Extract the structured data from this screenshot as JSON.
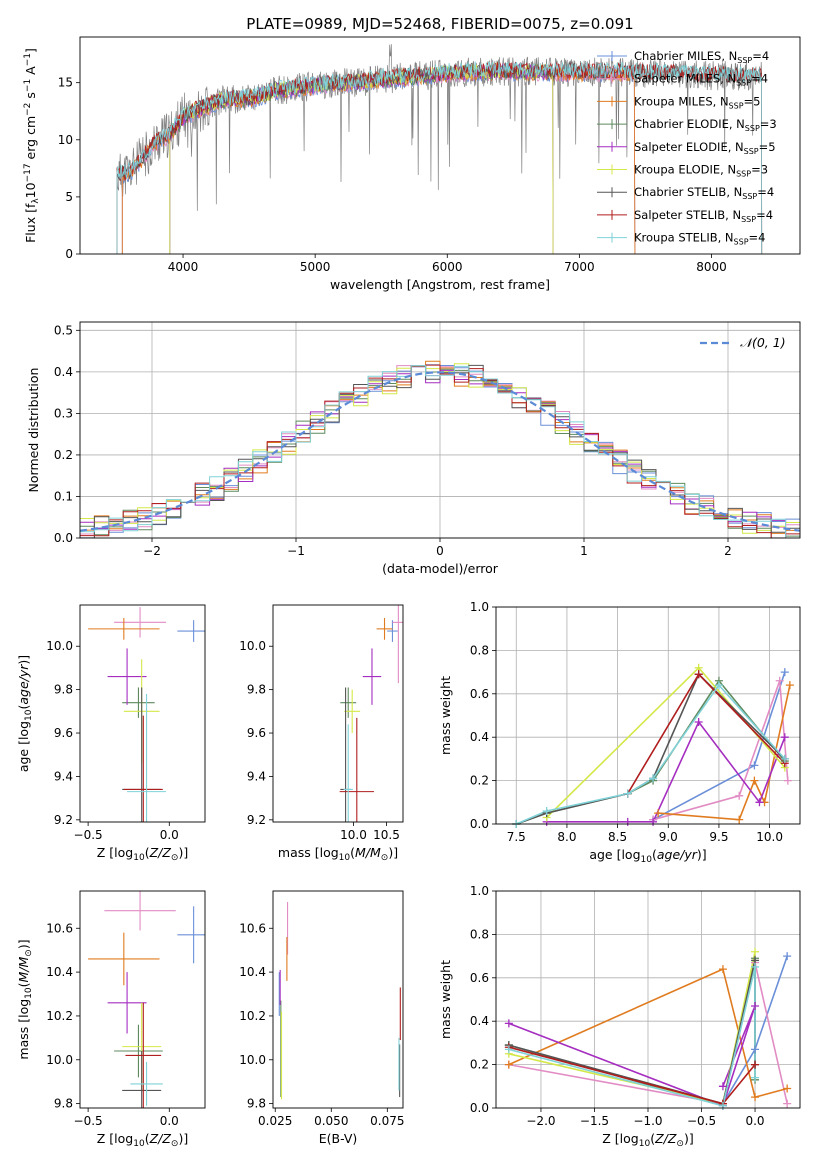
{
  "title": "PLATE=0989, MJD=52468, FIBERID=0075, z=0.091",
  "colors": {
    "Chabrier MILES": "#6a8fd8",
    "Salpeter MILES": "#e28cc4",
    "Kroupa MILES": "#e07b1f",
    "Chabrier ELODIE": "#5e8a5e",
    "Salpeter ELODIE": "#a52ec0",
    "Kroupa ELODIE": "#d4e84a",
    "Chabrier STELIB": "#555555",
    "Salpeter STELIB": "#b01e1e",
    "Kroupa STELIB": "#7fd2d8",
    "gaussian": "#5b8ad6"
  },
  "chart_data": [
    {
      "id": "spectrum",
      "type": "line",
      "xlabel": "wavelength [Angstrom, rest frame]",
      "ylabel": "Flux [f_λ 10^-17 erg cm^-2 s^-1 A^-1]",
      "xlim": [
        3220,
        8670
      ],
      "ylim": [
        0,
        19
      ],
      "xticks": [
        "4000",
        "5000",
        "6000",
        "7000",
        "8000"
      ],
      "yticks": [
        "0",
        "5",
        "10",
        "15"
      ],
      "legend_position": "top-right",
      "legend": [
        {
          "name": "Chabrier MILES",
          "nssp": "4"
        },
        {
          "name": "Salpeter MILES",
          "nssp": "4"
        },
        {
          "name": "Kroupa MILES",
          "nssp": "5"
        },
        {
          "name": "Chabrier ELODIE",
          "nssp": "3"
        },
        {
          "name": "Salpeter ELODIE",
          "nssp": "5"
        },
        {
          "name": "Kroupa ELODIE",
          "nssp": "3"
        },
        {
          "name": "Chabrier STELIB",
          "nssp": "4"
        },
        {
          "name": "Salpeter STELIB",
          "nssp": "4"
        },
        {
          "name": "Kroupa STELIB",
          "nssp": "4"
        }
      ],
      "continuum": {
        "x": [
          3500,
          3600,
          3700,
          3800,
          3900,
          4000,
          4100,
          4300,
          4500,
          4700,
          4900,
          5100,
          5300,
          5500,
          5800,
          6100,
          6400,
          6800,
          7200,
          7600,
          8000,
          8300
        ],
        "y": [
          6.8,
          7.2,
          8.5,
          9.8,
          10.5,
          12.0,
          12.6,
          13.5,
          13.6,
          14.3,
          14.6,
          14.9,
          15.0,
          15.3,
          15.6,
          15.9,
          16.0,
          15.9,
          15.9,
          15.8,
          15.6,
          15.6
        ]
      },
      "model_ranges": {
        "MILES": [
          3540,
          7420
        ],
        "ELODIE": [
          3900,
          6800
        ],
        "STELIB": [
          3500,
          8380
        ]
      }
    },
    {
      "id": "residuals",
      "type": "histogram",
      "xlabel": "(data-model)/error",
      "ylabel": "Normed distribution",
      "xlim": [
        -2.5,
        2.5
      ],
      "ylim": [
        0,
        0.52
      ],
      "xticks": [
        "−2",
        "−1",
        "0",
        "1",
        "2"
      ],
      "yticks": [
        "0.0",
        "0.1",
        "0.2",
        "0.3",
        "0.4",
        "0.5"
      ],
      "bin_width": 0.1,
      "legend_label": "𝒩(0, 1)",
      "legend_position": "top-right",
      "grid": true
    },
    {
      "id": "age-vs-Z",
      "type": "errorbar",
      "xlabel": "Z [log10(Z/Z⊙)]",
      "ylabel": "age  [log10(age/yr)]",
      "xlim": [
        -0.55,
        0.22
      ],
      "ylim": [
        9.19,
        10.19
      ],
      "xticks": [
        "−0.5",
        "0.0"
      ],
      "yticks": [
        "9.2",
        "9.4",
        "9.6",
        "9.8",
        "10.0"
      ],
      "series": [
        {
          "name": "Chabrier MILES",
          "x": 0.15,
          "xerr": 0.1,
          "y": 10.07,
          "yerr": 0.05
        },
        {
          "name": "Salpeter MILES",
          "x": -0.18,
          "xerr": 0.16,
          "y": 10.11,
          "yerr": 0.07
        },
        {
          "name": "Kroupa MILES",
          "x": -0.28,
          "xerr": 0.22,
          "y": 10.08,
          "yerr": 0.05
        },
        {
          "name": "Chabrier ELODIE",
          "x": -0.19,
          "xerr": 0.1,
          "y": 9.74,
          "yerr": 0.07
        },
        {
          "name": "Salpeter ELODIE",
          "x": -0.26,
          "xerr": 0.12,
          "y": 9.86,
          "yerr": 0.13
        },
        {
          "name": "Kroupa ELODIE",
          "x": -0.17,
          "xerr": 0.11,
          "y": 9.7,
          "yerr": 0.24
        },
        {
          "name": "Chabrier STELIB",
          "x": -0.17,
          "xerr": 0.12,
          "y": 9.34,
          "yerr": 0.47
        },
        {
          "name": "Salpeter STELIB",
          "x": -0.16,
          "xerr": 0.12,
          "y": 9.34,
          "yerr": 0.34
        },
        {
          "name": "Kroupa STELIB",
          "x": -0.14,
          "xerr": 0.12,
          "y": 9.33,
          "yerr": 0.45
        }
      ]
    },
    {
      "id": "age-vs-mass",
      "type": "errorbar",
      "xlabel": "mass [log10(M/M⊙)]",
      "ylabel": "",
      "xlim": [
        8.78,
        10.75
      ],
      "ylim": [
        9.19,
        10.19
      ],
      "xticks": [
        "10.0",
        "10.5"
      ],
      "yticks": [
        "9.2",
        "9.4",
        "9.6",
        "9.8",
        "10.0"
      ],
      "series": [
        {
          "name": "Chabrier MILES",
          "x": 10.59,
          "xerr": 0.08,
          "y": 10.07,
          "yerr": 0.05
        },
        {
          "name": "Salpeter MILES",
          "x": 10.68,
          "xerr": 0.09,
          "y": 10.11,
          "yerr": 0.28
        },
        {
          "name": "Kroupa MILES",
          "x": 10.47,
          "xerr": 0.12,
          "y": 10.08,
          "yerr": 0.05
        },
        {
          "name": "Chabrier ELODIE",
          "x": 9.92,
          "xerr": 0.12,
          "y": 9.74,
          "yerr": 0.07
        },
        {
          "name": "Salpeter ELODIE",
          "x": 10.28,
          "xerr": 0.14,
          "y": 9.86,
          "yerr": 0.13
        },
        {
          "name": "Kroupa ELODIE",
          "x": 9.98,
          "xerr": 0.12,
          "y": 9.7,
          "yerr": 0.1
        },
        {
          "name": "Chabrier STELIB",
          "x": 9.88,
          "xerr": 0.08,
          "y": 9.34,
          "yerr": 0.47
        },
        {
          "name": "Salpeter STELIB",
          "x": 10.05,
          "xerr": 0.26,
          "y": 9.33,
          "yerr": 0.34
        },
        {
          "name": "Kroupa STELIB",
          "x": 9.92,
          "xerr": 0.07,
          "y": 9.34,
          "yerr": 0.3
        }
      ]
    },
    {
      "id": "weight-vs-age",
      "type": "line",
      "xlabel": "age  [log10(age/yr)]",
      "ylabel": "mass weight",
      "xlim": [
        7.3,
        10.3
      ],
      "ylim": [
        0,
        1
      ],
      "xticks": [
        "7.5",
        "8.0",
        "8.5",
        "9.0",
        "9.5",
        "10.0"
      ],
      "yticks": [
        "0.0",
        "0.2",
        "0.4",
        "0.6",
        "0.8",
        "1.0"
      ],
      "grid": true,
      "series": [
        {
          "name": "Chabrier MILES",
          "x": [
            8.85,
            9.85,
            10.15
          ],
          "y": [
            0.02,
            0.27,
            0.7
          ]
        },
        {
          "name": "Salpeter MILES",
          "x": [
            8.85,
            9.7,
            10.1,
            10.18
          ],
          "y": [
            0.02,
            0.13,
            0.66,
            0.2
          ]
        },
        {
          "name": "Kroupa MILES",
          "x": [
            8.9,
            9.7,
            9.85,
            9.95,
            10.2
          ],
          "y": [
            0.05,
            0.02,
            0.2,
            0.1,
            0.64
          ]
        },
        {
          "name": "Chabrier ELODIE",
          "x": [
            7.5,
            7.8,
            8.6,
            8.85,
            9.5,
            10.15
          ],
          "y": [
            0.0,
            0.05,
            0.14,
            0.2,
            0.66,
            0.29
          ]
        },
        {
          "name": "Salpeter ELODIE",
          "x": [
            7.8,
            8.6,
            8.85,
            9.3,
            9.9,
            10.15
          ],
          "y": [
            0.01,
            0.01,
            0.01,
            0.47,
            0.1,
            0.4
          ]
        },
        {
          "name": "Kroupa ELODIE",
          "x": [
            7.8,
            9.3,
            10.15
          ],
          "y": [
            0.03,
            0.72,
            0.26
          ]
        },
        {
          "name": "Chabrier STELIB",
          "x": [
            7.5,
            7.8,
            8.6,
            8.85,
            9.3,
            10.15
          ],
          "y": [
            0.0,
            0.05,
            0.14,
            0.21,
            0.69,
            0.3
          ]
        },
        {
          "name": "Salpeter STELIB",
          "x": [
            8.6,
            9.3,
            10.15
          ],
          "y": [
            0.14,
            0.69,
            0.28
          ]
        },
        {
          "name": "Kroupa STELIB",
          "x": [
            7.5,
            7.8,
            8.6,
            8.85,
            9.5,
            10.15
          ],
          "y": [
            0.0,
            0.06,
            0.14,
            0.21,
            0.64,
            0.3
          ]
        }
      ]
    },
    {
      "id": "mass-vs-Z",
      "type": "errorbar",
      "xlabel": "Z [log10(Z/Z⊙)]",
      "ylabel": "mass [log10(M/M⊙)]",
      "xlim": [
        -0.55,
        0.22
      ],
      "ylim": [
        9.78,
        10.77
      ],
      "xticks": [
        "−0.5",
        "0.0"
      ],
      "yticks": [
        "9.8",
        "10.0",
        "10.2",
        "10.4",
        "10.6"
      ],
      "series": [
        {
          "name": "Chabrier MILES",
          "x": 0.15,
          "xerr": 0.1,
          "y": 10.57,
          "yerr": 0.13
        },
        {
          "name": "Salpeter MILES",
          "x": -0.18,
          "xerr": 0.22,
          "y": 10.68,
          "yerr": 0.09
        },
        {
          "name": "Kroupa MILES",
          "x": -0.28,
          "xerr": 0.22,
          "y": 10.46,
          "yerr": 0.12
        },
        {
          "name": "Chabrier ELODIE",
          "x": -0.19,
          "xerr": 0.15,
          "y": 10.04,
          "yerr": 0.12
        },
        {
          "name": "Salpeter ELODIE",
          "x": -0.26,
          "xerr": 0.12,
          "y": 10.26,
          "yerr": 0.14
        },
        {
          "name": "Kroupa ELODIE",
          "x": -0.17,
          "xerr": 0.12,
          "y": 10.06,
          "yerr": 0.2
        },
        {
          "name": "Chabrier STELIB",
          "x": -0.17,
          "xerr": 0.12,
          "y": 9.86,
          "yerr": 0.18
        },
        {
          "name": "Salpeter STELIB",
          "x": -0.16,
          "xerr": 0.11,
          "y": 10.02,
          "yerr": 0.24
        },
        {
          "name": "Kroupa STELIB",
          "x": -0.14,
          "xerr": 0.1,
          "y": 9.89,
          "yerr": 0.1
        }
      ]
    },
    {
      "id": "mass-vs-EBV",
      "type": "errorbar",
      "xlabel": "E(B-V)",
      "ylabel": "",
      "xlim": [
        0.024,
        0.082
      ],
      "ylim": [
        9.78,
        10.77
      ],
      "xticks": [
        "0.025",
        "0.050",
        "0.075"
      ],
      "yticks": [
        "9.8",
        "10.0",
        "10.2",
        "10.4",
        "10.6"
      ],
      "series": [
        {
          "name": "Chabrier MILES",
          "x": 0.0268,
          "xerr": 0,
          "y": 10.3,
          "yerr": 0.1
        },
        {
          "name": "Salpeter MILES",
          "x": 0.0305,
          "xerr": 0,
          "y": 10.6,
          "yerr": 0.12
        },
        {
          "name": "Kroupa MILES",
          "x": 0.0302,
          "xerr": 0,
          "y": 10.46,
          "yerr": 0.1
        },
        {
          "name": "Chabrier ELODIE",
          "x": 0.0275,
          "xerr": 0,
          "y": 10.05,
          "yerr": 0.22
        },
        {
          "name": "Salpeter ELODIE",
          "x": 0.0272,
          "xerr": 0,
          "y": 10.33,
          "yerr": 0.08
        },
        {
          "name": "Kroupa ELODIE",
          "x": 0.0278,
          "xerr": 0,
          "y": 10.02,
          "yerr": 0.2
        },
        {
          "name": "Chabrier STELIB",
          "x": 0.0805,
          "xerr": 0,
          "y": 9.95,
          "yerr": 0.12
        },
        {
          "name": "Salpeter STELIB",
          "x": 0.0808,
          "xerr": 0,
          "y": 10.21,
          "yerr": 0.12
        },
        {
          "name": "Kroupa STELIB",
          "x": 0.0802,
          "xerr": 0,
          "y": 9.98,
          "yerr": 0.12
        }
      ]
    },
    {
      "id": "weight-vs-Z",
      "type": "line",
      "xlabel": "Z [log10(Z/Z⊙)]",
      "ylabel": "mass weight",
      "xlim": [
        -2.42,
        0.42
      ],
      "ylim": [
        0,
        1
      ],
      "xticks": [
        "−2.0",
        "−1.5",
        "−1.0",
        "−0.5",
        "0.0"
      ],
      "yticks": [
        "0.0",
        "0.2",
        "0.4",
        "0.6",
        "0.8",
        "1.0"
      ],
      "grid": true,
      "series": [
        {
          "name": "Chabrier MILES",
          "x": [
            -0.3,
            0.0,
            0.3
          ],
          "y": [
            0.02,
            0.27,
            0.7
          ]
        },
        {
          "name": "Salpeter MILES",
          "x": [
            -2.3,
            -0.3,
            0.0,
            0.3
          ],
          "y": [
            0.2,
            0.02,
            0.67,
            0.02
          ]
        },
        {
          "name": "Kroupa MILES",
          "x": [
            -2.3,
            -0.3,
            0.0,
            0.3
          ],
          "y": [
            0.2,
            0.64,
            0.05,
            0.09
          ]
        },
        {
          "name": "Chabrier ELODIE",
          "x": [
            -2.3,
            -0.3,
            0.0,
            0.0
          ],
          "y": [
            0.29,
            0.01,
            0.69,
            0.13
          ]
        },
        {
          "name": "Salpeter ELODIE",
          "x": [
            -2.3,
            -0.3,
            0.0,
            -0.3
          ],
          "y": [
            0.39,
            0.01,
            0.47,
            0.1
          ]
        },
        {
          "name": "Kroupa ELODIE",
          "x": [
            -2.3,
            -0.3,
            0.0
          ],
          "y": [
            0.25,
            0.02,
            0.72
          ]
        },
        {
          "name": "Chabrier STELIB",
          "x": [
            -2.3,
            -0.3,
            0.0,
            0.0
          ],
          "y": [
            0.29,
            0.02,
            0.68,
            0.2
          ]
        },
        {
          "name": "Salpeter STELIB",
          "x": [
            -2.3,
            -0.3,
            0.0
          ],
          "y": [
            0.28,
            0.02,
            0.2
          ]
        },
        {
          "name": "Kroupa STELIB",
          "x": [
            -2.3,
            -0.3,
            0.0,
            0.0
          ],
          "y": [
            0.27,
            0.01,
            0.65,
            0.14
          ]
        }
      ]
    }
  ]
}
